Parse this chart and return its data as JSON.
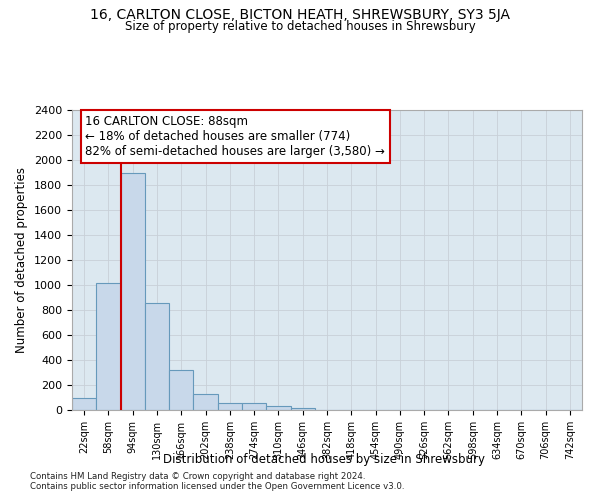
{
  "title_line1": "16, CARLTON CLOSE, BICTON HEATH, SHREWSBURY, SY3 5JA",
  "title_line2": "Size of property relative to detached houses in Shrewsbury",
  "xlabel": "Distribution of detached houses by size in Shrewsbury",
  "ylabel": "Number of detached properties",
  "bar_labels": [
    "22sqm",
    "58sqm",
    "94sqm",
    "130sqm",
    "166sqm",
    "202sqm",
    "238sqm",
    "274sqm",
    "310sqm",
    "346sqm",
    "382sqm",
    "418sqm",
    "454sqm",
    "490sqm",
    "526sqm",
    "562sqm",
    "598sqm",
    "634sqm",
    "670sqm",
    "706sqm",
    "742sqm"
  ],
  "bar_values": [
    100,
    1020,
    1900,
    855,
    320,
    125,
    60,
    55,
    35,
    20,
    0,
    0,
    0,
    0,
    0,
    0,
    0,
    0,
    0,
    0,
    0
  ],
  "bar_color": "#c8d8ea",
  "bar_edgecolor": "#6699bb",
  "vline_color": "#cc0000",
  "annotation_line1": "16 CARLTON CLOSE: 88sqm",
  "annotation_line2": "← 18% of detached houses are smaller (774)",
  "annotation_line3": "82% of semi-detached houses are larger (3,580) →",
  "annotation_box_color": "#ffffff",
  "annotation_box_edgecolor": "#cc0000",
  "ylim": [
    0,
    2400
  ],
  "yticks": [
    0,
    200,
    400,
    600,
    800,
    1000,
    1200,
    1400,
    1600,
    1800,
    2000,
    2200,
    2400
  ],
  "grid_color": "#c8d0d8",
  "bg_color": "#dce8f0",
  "footnote1": "Contains HM Land Registry data © Crown copyright and database right 2024.",
  "footnote2": "Contains public sector information licensed under the Open Government Licence v3.0."
}
